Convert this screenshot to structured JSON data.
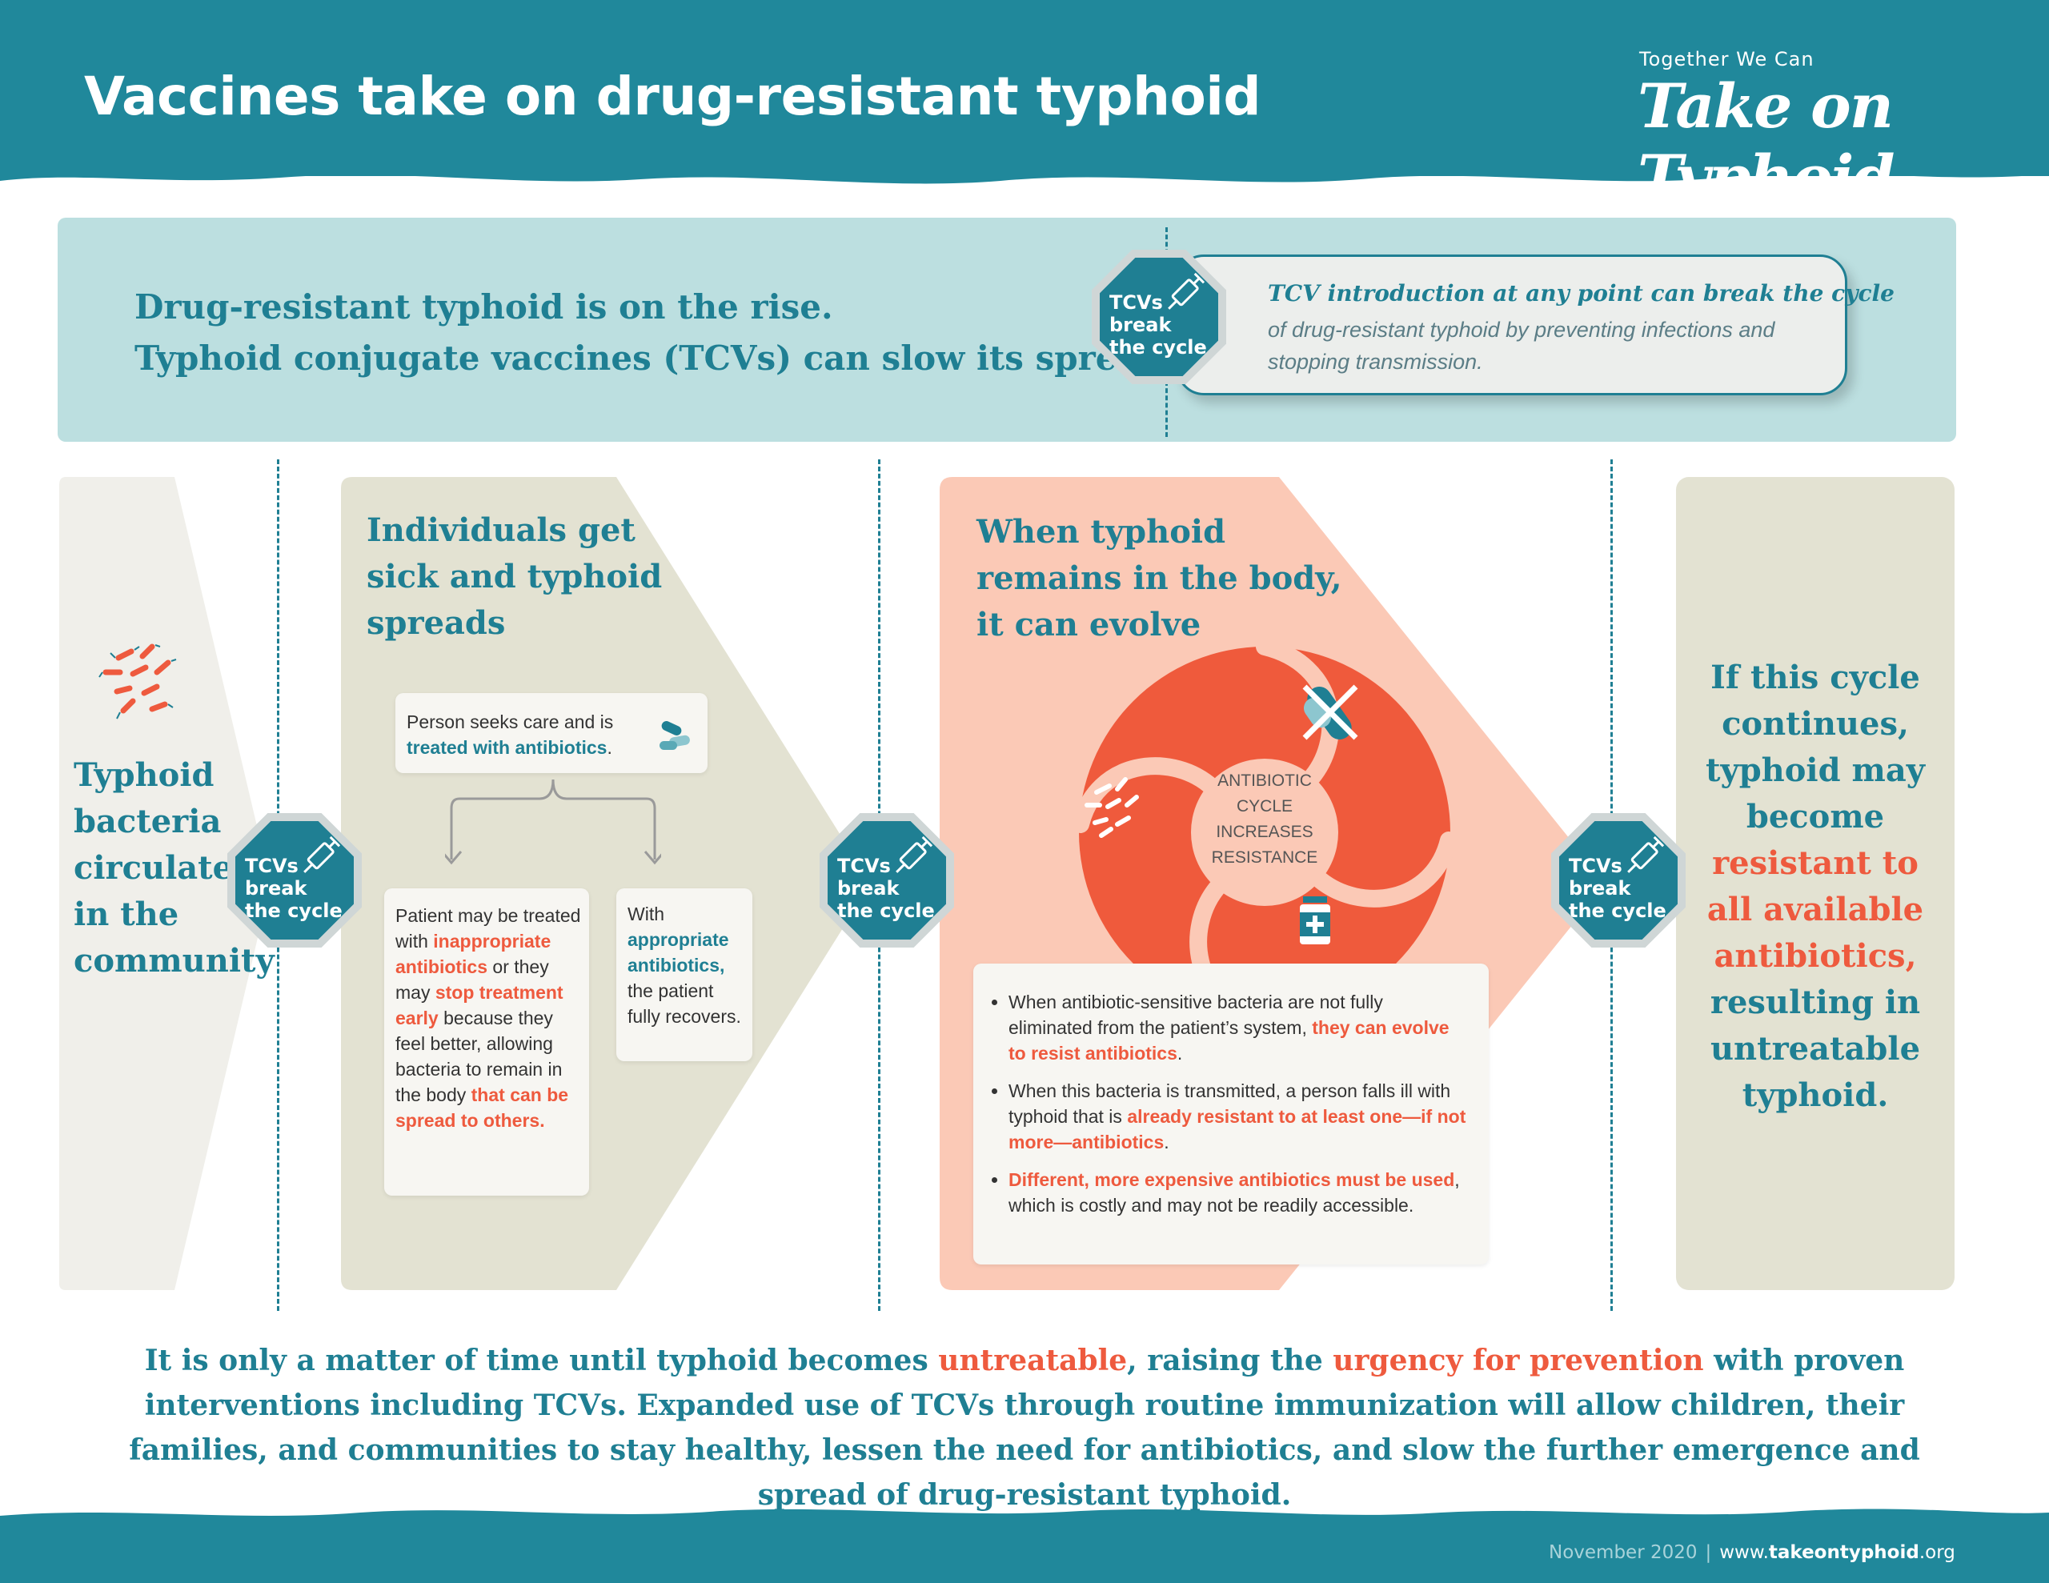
{
  "header": {
    "title": "Vaccines take on drug-resistant typhoid",
    "logo_tagline": "Together We Can",
    "logo_name": "Take on Typhoid"
  },
  "intro": {
    "line1": "Drug-resistant typhoid is on the rise.",
    "line2": "Typhoid conjugate vaccines (TCVs) can slow its spread.",
    "note_title": "TCV introduction at any point can break the cycle",
    "note_body": "of drug-resistant typhoid by preventing infections and stopping transmission."
  },
  "badge": {
    "line1": "TCVs",
    "line2": "break",
    "line3": "the cycle",
    "icon": "syringe-icon"
  },
  "col1": {
    "w1": "Typhoid",
    "w2": "bacteria",
    "w3": "circulates",
    "w4": "in the",
    "w5": "community",
    "icon": "bacteria-icon"
  },
  "col2": {
    "heading1": "Individuals get",
    "heading2": "sick and typhoid",
    "heading3": "spreads",
    "care_text": "Person seeks care and is",
    "care_highlight": "treated with antibiotics",
    "care_end": ".",
    "left": {
      "t1": "Patient may be treated with",
      "h1": "inappropriate antibiotics",
      "t2": "or they may",
      "h2": "stop treatment early",
      "t3": "because they feel better, allowing bacteria to remain in the body",
      "h3": "that can be spread to others."
    },
    "right": {
      "t1": "With",
      "h1": "appropriate antibiotics,",
      "t2": "the patient fully recovers."
    }
  },
  "col3": {
    "heading1": "When typhoid",
    "heading2": "remains in the body,",
    "heading3": "it can evolve",
    "ring_1": "ANTIBIOTIC",
    "ring_2": "CYCLE",
    "ring_3": "INCREASES",
    "ring_4": "RESISTANCE",
    "b1_text": "When antibiotic-sensitive bacteria are not fully eliminated from the patient’s system,",
    "b1_highlight": "they can evolve to resist antibiotics",
    "b1_end": ".",
    "b2_text": "When this bacteria is transmitted, a person falls ill with typhoid that is",
    "b2_highlight": "already resistant to at least one—if not more—antibiotics",
    "b2_end": ".",
    "b3_highlight": "Different, more expensive antibiotics must be used",
    "b3_text": ", which is costly and may not be readily accessible."
  },
  "col4": {
    "t1": "If this cycle",
    "t2": "continues,",
    "t3": "typhoid may",
    "t4": "become",
    "r1": "resistant to",
    "r2": "all available",
    "r3": "antibiotics,",
    "t5": "resulting in",
    "t6": "untreatable",
    "t7": "typhoid."
  },
  "bottom": {
    "p1": "It is only a matter of time until typhoid becomes",
    "h1": "untreatable",
    "p2": ", raising the",
    "h2": "urgency for prevention",
    "p3": "with proven interventions including TCVs. Expanded use of TCVs through routine immunization will allow children, their families, and communities to stay healthy, lessen the need for antibiotics, and slow the further emergence and spread of drug-resistant typhoid."
  },
  "footer": {
    "date": "November 2020",
    "separator": "|",
    "site_pre": "www.",
    "site_bold": "takeontyphoid",
    "site_post": ".org"
  },
  "colors": {
    "teal": "#1f7f93",
    "red": "#ee5a3e",
    "light_blue": "#bcdfe0",
    "beige": "#e3e2d2",
    "salmon": "#fbc9b6"
  }
}
